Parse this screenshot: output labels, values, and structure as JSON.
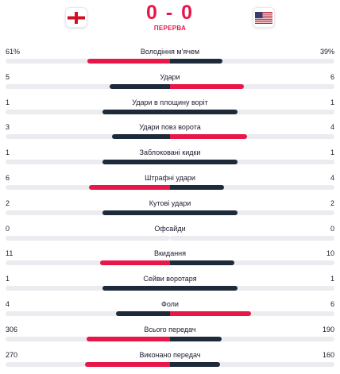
{
  "match": {
    "home_flag_icon": "england-flag-icon",
    "away_flag_icon": "usa-flag-icon",
    "score": "0 - 0",
    "status": "ПЕРЕРВА"
  },
  "colors": {
    "accent": "#e8174a",
    "dark": "#1d2a3a",
    "track": "#ececf0"
  },
  "stats": [
    {
      "label": "Володіння м'ячем",
      "home": "61%",
      "away": "39%",
      "home_share": 0.61,
      "away_share": 0.39
    },
    {
      "label": "Удари",
      "home": "5",
      "away": "6",
      "home_share": 0.45,
      "away_share": 0.55
    },
    {
      "label": "Удари в площину воріт",
      "home": "1",
      "away": "1",
      "home_share": 0.5,
      "away_share": 0.5
    },
    {
      "label": "Удари повз ворота",
      "home": "3",
      "away": "4",
      "home_share": 0.43,
      "away_share": 0.57
    },
    {
      "label": "Заблоковані кидки",
      "home": "1",
      "away": "1",
      "home_share": 0.5,
      "away_share": 0.5
    },
    {
      "label": "Штрафні удари",
      "home": "6",
      "away": "4",
      "home_share": 0.6,
      "away_share": 0.4
    },
    {
      "label": "Кутові удари",
      "home": "2",
      "away": "2",
      "home_share": 0.5,
      "away_share": 0.5
    },
    {
      "label": "Офсайди",
      "home": "0",
      "away": "0",
      "home_share": 0,
      "away_share": 0
    },
    {
      "label": "Вкидання",
      "home": "11",
      "away": "10",
      "home_share": 0.52,
      "away_share": 0.48
    },
    {
      "label": "Сейви воротаря",
      "home": "1",
      "away": "1",
      "home_share": 0.5,
      "away_share": 0.5
    },
    {
      "label": "Фоли",
      "home": "4",
      "away": "6",
      "home_share": 0.4,
      "away_share": 0.6
    },
    {
      "label": "Всього передач",
      "home": "306",
      "away": "190",
      "home_share": 0.62,
      "away_share": 0.38
    },
    {
      "label": "Виконано передач",
      "home": "270",
      "away": "160",
      "home_share": 0.63,
      "away_share": 0.37
    }
  ]
}
